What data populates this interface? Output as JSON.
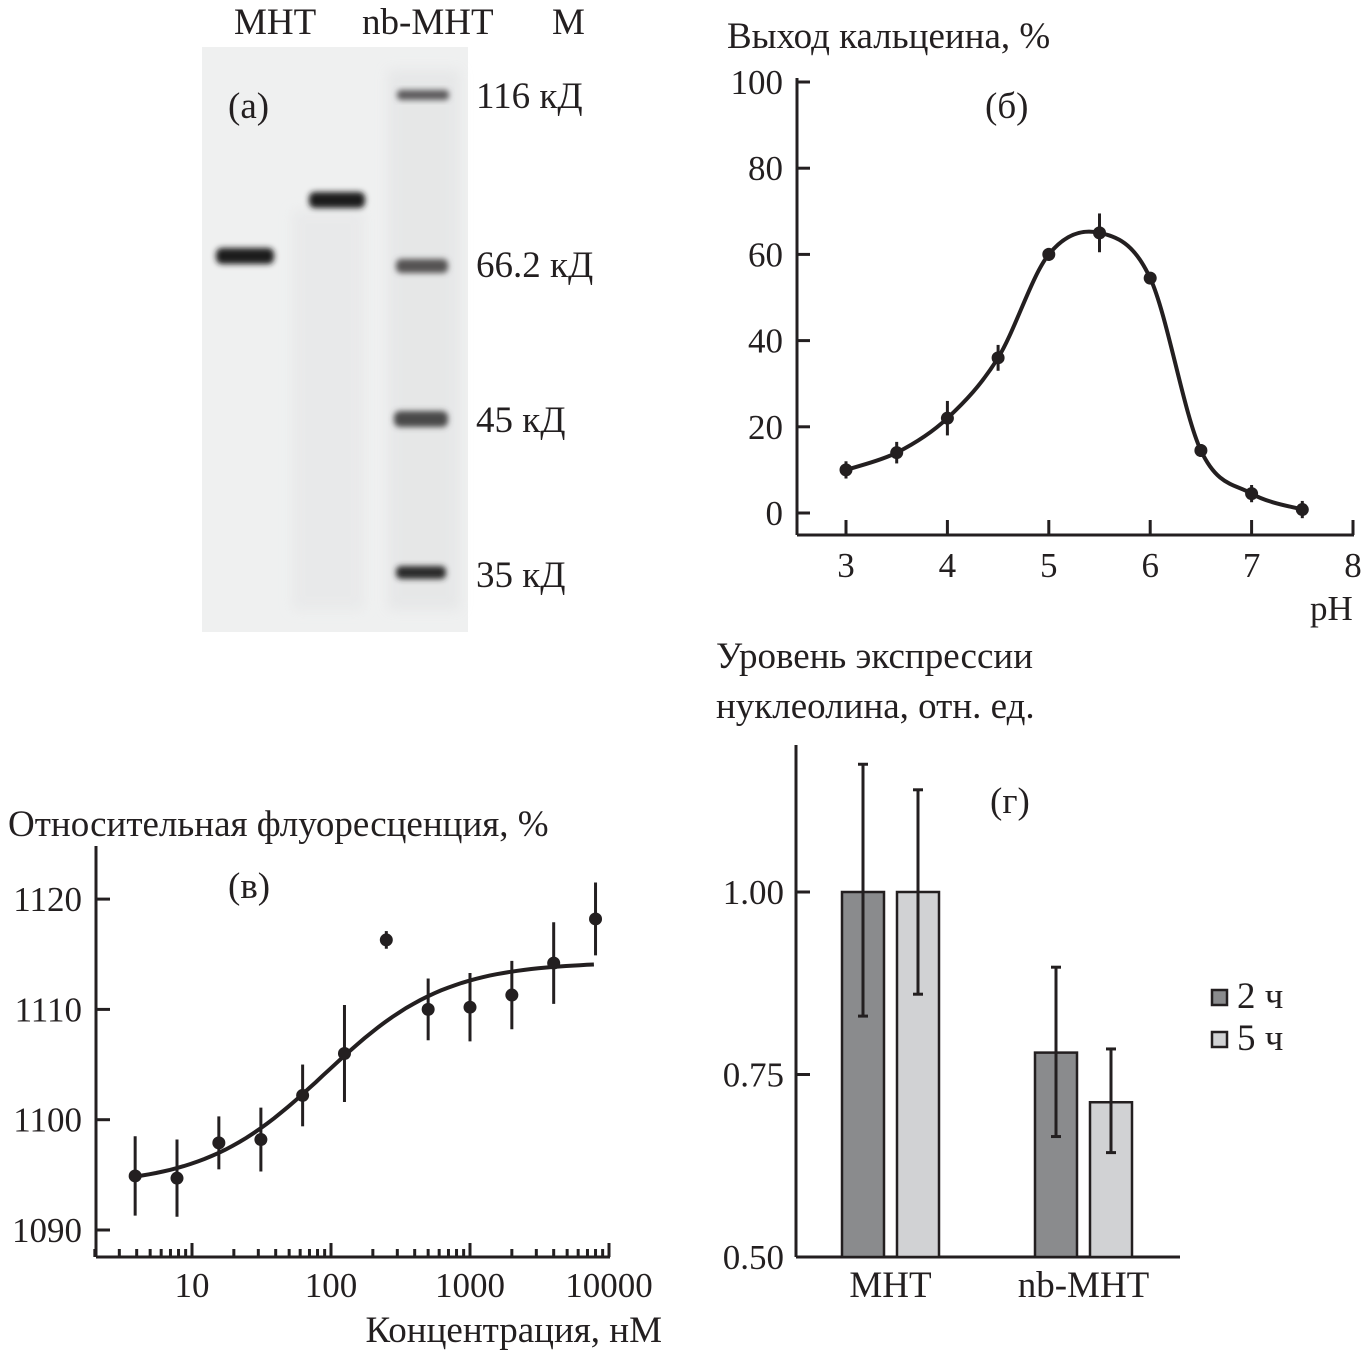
{
  "figure": {
    "panel_a": {
      "label": "(а)",
      "lanes": [
        "МНТ",
        "nb-МНТ",
        "M"
      ],
      "markers": [
        "116 кД",
        "66.2 кД",
        "45 кД",
        "35 кД"
      ],
      "gel_background": "#eff0f0"
    },
    "panel_b_label": "(б)",
    "panel_v_label": "(в)",
    "panel_g_label": "(г)"
  },
  "chart_data": [
    {
      "id": "b",
      "type": "line",
      "title": "",
      "ylabel": "Выход кальцеина, %",
      "xlabel": "pH",
      "xlim": [
        2.5,
        8
      ],
      "ylim": [
        0,
        100
      ],
      "xticks": [
        3,
        4,
        5,
        6,
        7,
        8
      ],
      "yticks": [
        0,
        20,
        40,
        60,
        80,
        100
      ],
      "grid": false,
      "x": [
        3,
        3.5,
        4,
        4.5,
        5,
        5.5,
        6,
        6.5,
        7,
        7.5
      ],
      "y": [
        10,
        14,
        22,
        36,
        60,
        65,
        54.5,
        14.5,
        4.5,
        0.8
      ],
      "err": [
        2,
        2.5,
        4,
        3,
        1.5,
        4.5,
        1,
        1.5,
        2,
        2
      ]
    },
    {
      "id": "v",
      "type": "scatter",
      "title": "",
      "ylabel": "Относительная флуоресценция, %",
      "xlabel": "Концентрация, нМ",
      "xscale": "log",
      "xlim": [
        2,
        10000
      ],
      "ylim": [
        1087.5,
        1125
      ],
      "xticks": [
        10,
        100,
        1000,
        10000
      ],
      "xtick_labels": [
        "10",
        "100",
        "1000",
        "10000"
      ],
      "yticks": [
        1090,
        1100,
        1110,
        1120
      ],
      "grid": false,
      "x": [
        3.9,
        7.8,
        15.6,
        31.3,
        62.5,
        125,
        250,
        500,
        1000,
        2000,
        4000,
        8000
      ],
      "y": [
        1094.9,
        1094.7,
        1097.9,
        1098.2,
        1102.2,
        1106,
        1116.3,
        1110,
        1110.2,
        1111.3,
        1114.2,
        1118.2
      ],
      "err": [
        3.6,
        3.5,
        2.4,
        2.9,
        2.8,
        4.4,
        0.8,
        2.8,
        3.1,
        3.1,
        3.7,
        3.3
      ],
      "fit": {
        "bottom": 1094,
        "top": 1114.3,
        "ec50": 90,
        "hill": 1.0
      }
    },
    {
      "id": "g",
      "type": "bar",
      "title": "",
      "ylabel": "Уровень экспрессии нуклеолина, отн. ед.",
      "xlabel": "",
      "categories": [
        "МНТ",
        "nb-МНТ"
      ],
      "ylim": [
        0.5,
        1.18
      ],
      "yticks": [
        0.5,
        0.75,
        1.0
      ],
      "ytick_labels": [
        "0.50",
        "0.75",
        "1.00"
      ],
      "grid": false,
      "legend_position": "right",
      "series": [
        {
          "name": "2 ч",
          "color": "#8a8b8d",
          "values": [
            1.0,
            0.78
          ],
          "err_low": [
            0.83,
            0.665
          ],
          "err_high": [
            1.175,
            0.897
          ]
        },
        {
          "name": "5 ч",
          "color": "#d1d2d4",
          "values": [
            1.0,
            0.712
          ],
          "err_low": [
            0.86,
            0.643
          ],
          "err_high": [
            1.14,
            0.785
          ]
        }
      ]
    }
  ]
}
